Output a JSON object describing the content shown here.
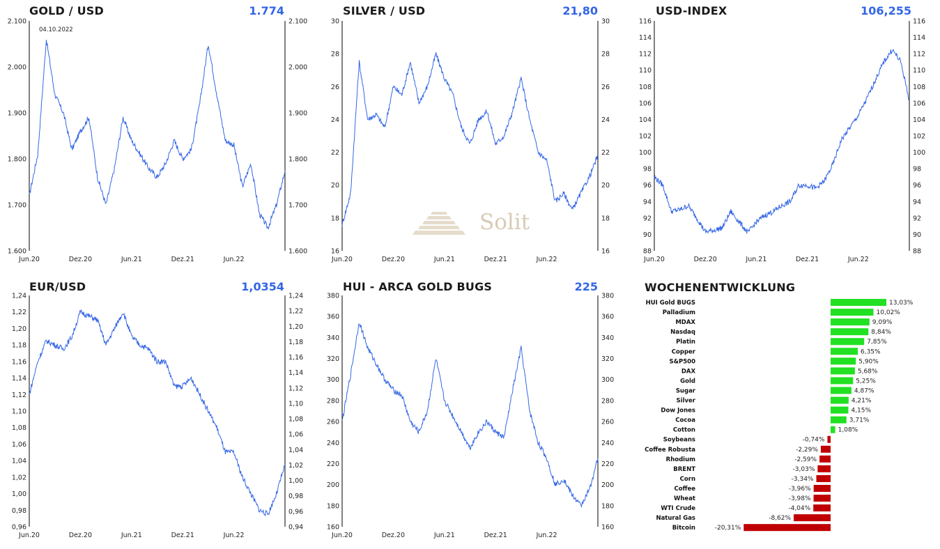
{
  "chart_data": [
    {
      "id": "gold",
      "type": "line",
      "title": "GOLD / USD",
      "current_value": "1.774",
      "ylim": [
        1600,
        2100
      ],
      "y_ticks": [
        1600,
        1700,
        1800,
        1900,
        2000,
        2100
      ],
      "y_tick_labels": [
        "1.600",
        "1.700",
        "1.800",
        "1.900",
        "2.000",
        "2.100"
      ],
      "x_tick_labels": [
        "Jun.20",
        "Dez.20",
        "Jun.21",
        "Dez.21",
        "Jun.22"
      ],
      "annotation": "04.10.2022",
      "x": [
        "2020-06",
        "2020-07",
        "2020-08",
        "2020-09",
        "2020-10",
        "2020-11",
        "2020-12",
        "2021-01",
        "2021-02",
        "2021-03",
        "2021-04",
        "2021-05",
        "2021-06",
        "2021-07",
        "2021-08",
        "2021-09",
        "2021-10",
        "2021-11",
        "2021-12",
        "2022-01",
        "2022-02",
        "2022-03",
        "2022-04",
        "2022-05",
        "2022-06",
        "2022-07",
        "2022-08",
        "2022-09",
        "2022-10",
        "2022-11",
        "2022-12"
      ],
      "values": [
        1720,
        1810,
        2060,
        1940,
        1900,
        1820,
        1860,
        1890,
        1760,
        1700,
        1780,
        1890,
        1840,
        1810,
        1780,
        1760,
        1790,
        1840,
        1800,
        1820,
        1920,
        2050,
        1940,
        1840,
        1830,
        1740,
        1790,
        1680,
        1650,
        1700,
        1774
      ]
    },
    {
      "id": "silver",
      "type": "line",
      "title": "SILVER / USD",
      "current_value": "21,80",
      "ylim": [
        16,
        30
      ],
      "y_ticks": [
        16,
        18,
        20,
        22,
        24,
        26,
        28,
        30
      ],
      "y_tick_labels": [
        "16",
        "18",
        "20",
        "22",
        "24",
        "26",
        "28",
        "30"
      ],
      "x_tick_labels": [
        "Jun.20",
        "Dez.20",
        "Jun.21",
        "Dez.21",
        "Jun.22"
      ],
      "x": [
        "2020-06",
        "2020-07",
        "2020-08",
        "2020-09",
        "2020-10",
        "2020-11",
        "2020-12",
        "2021-01",
        "2021-02",
        "2021-03",
        "2021-04",
        "2021-05",
        "2021-06",
        "2021-07",
        "2021-08",
        "2021-09",
        "2021-10",
        "2021-11",
        "2021-12",
        "2022-01",
        "2022-02",
        "2022-03",
        "2022-04",
        "2022-05",
        "2022-06",
        "2022-07",
        "2022-08",
        "2022-09",
        "2022-10",
        "2022-11",
        "2022-12"
      ],
      "values": [
        17.6,
        19.5,
        27.5,
        24.0,
        24.3,
        23.5,
        26.0,
        25.5,
        27.5,
        25.0,
        26.0,
        28.0,
        26.5,
        25.5,
        23.5,
        22.5,
        24.0,
        24.5,
        22.5,
        23.0,
        24.5,
        26.5,
        24.0,
        22.0,
        21.5,
        19.0,
        19.5,
        18.5,
        19.5,
        20.5,
        21.8
      ]
    },
    {
      "id": "usd-index",
      "type": "line",
      "title": "USD-INDEX",
      "current_value": "106,255",
      "ylim": [
        88,
        116
      ],
      "y_ticks": [
        88,
        90,
        92,
        94,
        96,
        98,
        100,
        102,
        104,
        106,
        108,
        110,
        112,
        114,
        116
      ],
      "y_tick_labels": [
        "88",
        "90",
        "92",
        "94",
        "96",
        "98",
        "100",
        "102",
        "104",
        "106",
        "108",
        "110",
        "112",
        "114",
        "116"
      ],
      "x_tick_labels": [
        "Jun.20",
        "Dez.20",
        "Jun.21",
        "Dez.21",
        "Jun.22"
      ],
      "x": [
        "2020-06",
        "2020-07",
        "2020-08",
        "2020-09",
        "2020-10",
        "2020-11",
        "2020-12",
        "2021-01",
        "2021-02",
        "2021-03",
        "2021-04",
        "2021-05",
        "2021-06",
        "2021-07",
        "2021-08",
        "2021-09",
        "2021-10",
        "2021-11",
        "2021-12",
        "2022-01",
        "2022-02",
        "2022-03",
        "2022-04",
        "2022-05",
        "2022-06",
        "2022-07",
        "2022-08",
        "2022-09",
        "2022-10",
        "2022-11",
        "2022-12"
      ],
      "values": [
        97.0,
        96.0,
        92.8,
        93.0,
        93.5,
        92.0,
        90.3,
        90.5,
        90.8,
        92.8,
        91.5,
        90.2,
        91.5,
        92.3,
        92.8,
        93.5,
        94.0,
        96.0,
        96.0,
        95.6,
        96.5,
        98.5,
        101.5,
        103.0,
        104.5,
        106.5,
        108.8,
        111.0,
        112.5,
        111.0,
        106.3
      ]
    },
    {
      "id": "eur-usd",
      "type": "line",
      "title": "EUR/USD",
      "current_value": "1,0354",
      "ylim": [
        0.96,
        1.24
      ],
      "y_ticks": [
        0.96,
        0.98,
        1.0,
        1.02,
        1.04,
        1.06,
        1.08,
        1.1,
        1.12,
        1.14,
        1.16,
        1.18,
        1.2,
        1.22,
        1.24
      ],
      "y_tick_labels": [
        "0,96",
        "0,98",
        "1,00",
        "1,02",
        "1,04",
        "1,06",
        "1,08",
        "1,10",
        "1,12",
        "1,14",
        "1,16",
        "1,18",
        "1,20",
        "1,22",
        "1,24"
      ],
      "right_ylim": [
        0.94,
        1.24
      ],
      "right_y_ticks": [
        0.94,
        0.96,
        0.98,
        1.0,
        1.02,
        1.04,
        1.06,
        1.08,
        1.1,
        1.12,
        1.14,
        1.16,
        1.18,
        1.2,
        1.22,
        1.24
      ],
      "right_y_tick_labels": [
        "0,94",
        "0,96",
        "0,98",
        "1,00",
        "1,02",
        "1,04",
        "1,06",
        "1,08",
        "1,10",
        "1,12",
        "1,14",
        "1,16",
        "1,18",
        "1,20",
        "1,22",
        "1,24"
      ],
      "x_tick_labels": [
        "Jun.20",
        "Dez.20",
        "Jun.21",
        "Dez.21",
        "Jun.22"
      ],
      "x": [
        "2020-06",
        "2020-07",
        "2020-08",
        "2020-09",
        "2020-10",
        "2020-11",
        "2020-12",
        "2021-01",
        "2021-02",
        "2021-03",
        "2021-04",
        "2021-05",
        "2021-06",
        "2021-07",
        "2021-08",
        "2021-09",
        "2021-10",
        "2021-11",
        "2021-12",
        "2022-01",
        "2022-02",
        "2022-03",
        "2022-04",
        "2022-05",
        "2022-06",
        "2022-07",
        "2022-08",
        "2022-09",
        "2022-10",
        "2022-11",
        "2022-12"
      ],
      "values": [
        1.12,
        1.16,
        1.185,
        1.18,
        1.175,
        1.19,
        1.22,
        1.215,
        1.21,
        1.18,
        1.2,
        1.22,
        1.19,
        1.18,
        1.175,
        1.16,
        1.16,
        1.13,
        1.13,
        1.14,
        1.12,
        1.1,
        1.08,
        1.05,
        1.05,
        1.02,
        1.0,
        0.98,
        0.975,
        1.0,
        1.035
      ]
    },
    {
      "id": "hui",
      "type": "line",
      "title": "HUI - ARCA GOLD BUGS",
      "current_value": "225",
      "ylim": [
        160,
        380
      ],
      "y_ticks": [
        160,
        180,
        200,
        220,
        240,
        260,
        280,
        300,
        320,
        340,
        360,
        380
      ],
      "y_tick_labels": [
        "160",
        "180",
        "200",
        "220",
        "240",
        "260",
        "280",
        "300",
        "320",
        "340",
        "360",
        "380"
      ],
      "x_tick_labels": [
        "Jun.20",
        "Dez.20",
        "Jun.21",
        "Dez.21",
        "Jun.22"
      ],
      "x": [
        "2020-06",
        "2020-07",
        "2020-08",
        "2020-09",
        "2020-10",
        "2020-11",
        "2020-12",
        "2021-01",
        "2021-02",
        "2021-03",
        "2021-04",
        "2021-05",
        "2021-06",
        "2021-07",
        "2021-08",
        "2021-09",
        "2021-10",
        "2021-11",
        "2021-12",
        "2022-01",
        "2022-02",
        "2022-03",
        "2022-04",
        "2022-05",
        "2022-06",
        "2022-07",
        "2022-08",
        "2022-09",
        "2022-10",
        "2022-11",
        "2022-12"
      ],
      "values": [
        260,
        305,
        355,
        330,
        315,
        300,
        290,
        285,
        260,
        250,
        270,
        320,
        280,
        265,
        250,
        235,
        250,
        260,
        250,
        245,
        290,
        330,
        270,
        240,
        225,
        200,
        205,
        190,
        180,
        195,
        225
      ]
    },
    {
      "id": "wochenentwicklung",
      "type": "bar",
      "orientation": "horizontal",
      "title": "WOCHENENTWICKLUNG",
      "categories": [
        "HUI Gold BUGS",
        "Palladium",
        "MDAX",
        "Nasdaq",
        "Platin",
        "Copper",
        "S&P500",
        "DAX",
        "Gold",
        "Sugar",
        "Silver",
        "Dow Jones",
        "Cocoa",
        "Cotton",
        "Soybeans",
        "Coffee Robusta",
        "Rhodium",
        "BRENT",
        "Corn",
        "Coffee",
        "Wheat",
        "WTI Crude",
        "Natural Gas",
        "Bitcoin"
      ],
      "values": [
        13.03,
        10.02,
        9.09,
        8.84,
        7.85,
        6.35,
        5.9,
        5.68,
        5.25,
        4.87,
        4.21,
        4.15,
        3.71,
        1.08,
        -0.74,
        -2.29,
        -2.59,
        -3.03,
        -3.34,
        -3.96,
        -3.98,
        -4.04,
        -8.62,
        -20.31
      ],
      "value_labels": [
        "13,03%",
        "10,02%",
        "9,09%",
        "8,84%",
        "7,85%",
        "6,35%",
        "5,90%",
        "5,68%",
        "5,25%",
        "4,87%",
        "4,21%",
        "4,15%",
        "3,71%",
        "1,08%",
        "-0,74%",
        "-2,29%",
        "-2,59%",
        "-3,03%",
        "-3,34%",
        "-3,96%",
        "-3,98%",
        "-4,04%",
        "-8,62%",
        "-20,31%"
      ],
      "positive_color": "#22e022",
      "negative_color": "#c00000"
    }
  ],
  "watermark": {
    "text": "Solit",
    "color": "#d8cbb6"
  },
  "colors": {
    "line": "#3366e6",
    "value": "#3366e6",
    "axis": "#000000"
  }
}
